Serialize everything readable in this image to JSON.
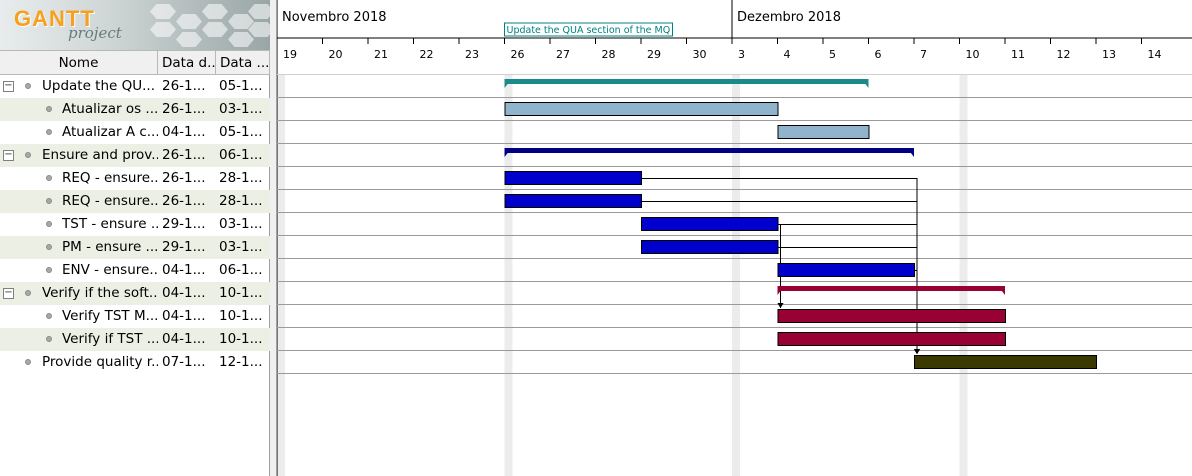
{
  "logo": {
    "brand": "GANTT",
    "sub": "project"
  },
  "table": {
    "headers": {
      "name": "Nome",
      "start": "Data d...",
      "end": "Data ..."
    },
    "rows": [
      {
        "name": "Update the QU...",
        "start": "26-1...",
        "end": "05-1...",
        "level": 0,
        "group": true,
        "alt": false
      },
      {
        "name": "Atualizar os ...",
        "start": "26-1...",
        "end": "03-1...",
        "level": 1,
        "group": false,
        "alt": true
      },
      {
        "name": "Atualizar A c...",
        "start": "04-1...",
        "end": "05-1...",
        "level": 1,
        "group": false,
        "alt": false
      },
      {
        "name": "Ensure and prov...",
        "start": "26-1...",
        "end": "06-1...",
        "level": 0,
        "group": true,
        "alt": true
      },
      {
        "name": "REQ - ensure...",
        "start": "26-1...",
        "end": "28-1...",
        "level": 1,
        "group": false,
        "alt": false
      },
      {
        "name": "REQ - ensure...",
        "start": "26-1...",
        "end": "28-1...",
        "level": 1,
        "group": false,
        "alt": true
      },
      {
        "name": "TST - ensure ...",
        "start": "29-1...",
        "end": "03-1...",
        "level": 1,
        "group": false,
        "alt": false
      },
      {
        "name": "PM - ensure ...",
        "start": "29-1...",
        "end": "03-1...",
        "level": 1,
        "group": false,
        "alt": true
      },
      {
        "name": "ENV - ensure...",
        "start": "04-1...",
        "end": "06-1...",
        "level": 1,
        "group": false,
        "alt": false
      },
      {
        "name": "Verify if the soft...",
        "start": "04-1...",
        "end": "10-1...",
        "level": 0,
        "group": true,
        "alt": true
      },
      {
        "name": "Verify TST M...",
        "start": "04-1...",
        "end": "10-1...",
        "level": 1,
        "group": false,
        "alt": false
      },
      {
        "name": "Verify if TST ...",
        "start": "04-1...",
        "end": "10-1...",
        "level": 1,
        "group": false,
        "alt": true
      },
      {
        "name": "Provide quality r...",
        "start": "07-1...",
        "end": "12-1...",
        "level": 0,
        "group": false,
        "alt": false
      }
    ]
  },
  "timeline": {
    "months": [
      {
        "label": "Novembro 2018",
        "day_index": 0
      },
      {
        "label": "Dezembro 2018",
        "day_index": 10
      }
    ],
    "days": [
      "19",
      "20",
      "21",
      "22",
      "23",
      "26",
      "27",
      "28",
      "29",
      "30",
      "3",
      "4",
      "5",
      "6",
      "7",
      "10",
      "11",
      "12",
      "13",
      "14"
    ],
    "highlight_days": [
      5,
      10,
      15
    ],
    "annotation": "Update the QUA section of the MQ"
  },
  "colors": {
    "summary_teal": "#1a8a8a",
    "task_lightblue": "#8fb4cc",
    "task_blue": "#0000cc",
    "summary_navy": "#000080",
    "task_crimson": "#990033",
    "task_olive": "#3a3a00",
    "weekend": "#ececec"
  },
  "bars": [
    {
      "row": 0,
      "start": 5,
      "end": 13,
      "kind": "summary",
      "color": "summary_teal"
    },
    {
      "row": 1,
      "start": 5,
      "end": 11,
      "kind": "task",
      "color": "task_lightblue"
    },
    {
      "row": 2,
      "start": 11,
      "end": 13,
      "kind": "task",
      "color": "task_lightblue"
    },
    {
      "row": 3,
      "start": 5,
      "end": 14,
      "kind": "summary",
      "color": "summary_navy"
    },
    {
      "row": 4,
      "start": 5,
      "end": 8,
      "kind": "task",
      "color": "task_blue"
    },
    {
      "row": 5,
      "start": 5,
      "end": 8,
      "kind": "task",
      "color": "task_blue"
    },
    {
      "row": 6,
      "start": 8,
      "end": 11,
      "kind": "task",
      "color": "task_blue"
    },
    {
      "row": 7,
      "start": 8,
      "end": 11,
      "kind": "task",
      "color": "task_blue"
    },
    {
      "row": 8,
      "start": 11,
      "end": 14,
      "kind": "task",
      "color": "task_blue"
    },
    {
      "row": 9,
      "start": 11,
      "end": 16,
      "kind": "summary",
      "color": "task_crimson"
    },
    {
      "row": 10,
      "start": 11,
      "end": 16,
      "kind": "task",
      "color": "task_crimson"
    },
    {
      "row": 11,
      "start": 11,
      "end": 16,
      "kind": "task",
      "color": "task_crimson"
    },
    {
      "row": 12,
      "start": 14,
      "end": 18,
      "kind": "task",
      "color": "task_olive"
    }
  ],
  "dependencies": [
    {
      "from": 4,
      "to": 12
    },
    {
      "from": 5,
      "to": 12
    },
    {
      "from": 6,
      "to": 12
    },
    {
      "from": 7,
      "to": 12
    },
    {
      "from": 8,
      "to": 12
    },
    {
      "from": 6,
      "to": 10
    },
    {
      "from": 7,
      "to": 10
    }
  ]
}
